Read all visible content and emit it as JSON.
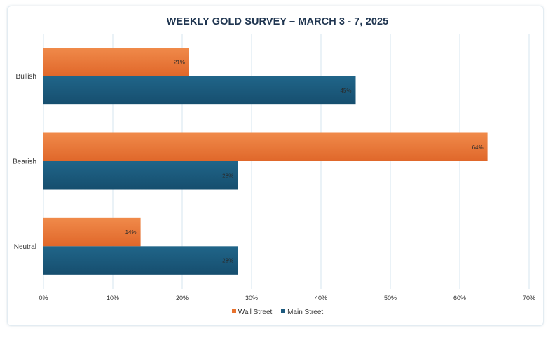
{
  "chart_data": {
    "type": "bar",
    "orientation": "horizontal",
    "title": "WEEKLY GOLD SURVEY – MARCH 3 - 7, 2025",
    "categories": [
      "Bullish",
      "Bearish",
      "Neutral"
    ],
    "series": [
      {
        "name": "Wall Street",
        "values": [
          21,
          64,
          14
        ],
        "labels": [
          "21%",
          "64%",
          "14%"
        ],
        "color": "#e8732f"
      },
      {
        "name": "Main Street",
        "values": [
          45,
          28,
          28
        ],
        "labels": [
          "45%",
          "28%",
          "28%"
        ],
        "color": "#1d5a7e"
      }
    ],
    "xlim": [
      0,
      70
    ],
    "x_ticks": [
      0,
      10,
      20,
      30,
      40,
      50,
      60,
      70
    ],
    "x_tick_labels": [
      "0%",
      "10%",
      "20%",
      "30%",
      "40%",
      "50%",
      "60%",
      "70%"
    ],
    "grid": true,
    "legend_position": "bottom"
  }
}
